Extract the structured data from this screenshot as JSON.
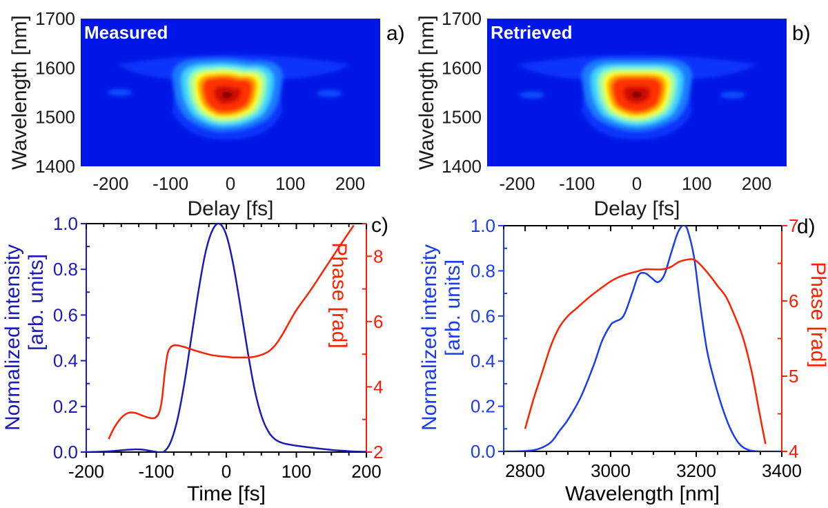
{
  "colors": {
    "map_background": "#0016e6",
    "intensity_c": "#1a1ab8",
    "intensity_d": "#1a3cf0",
    "phase": "#ff2000",
    "axis_text": "#1a1a1a",
    "intensity_axis_text": "#1a1ad6",
    "phase_axis_text": "#ff1a00"
  },
  "chart_data": [
    {
      "id": "a",
      "type": "heatmap",
      "panel_label": "a)",
      "title": "Measured",
      "xlabel": "Delay [fs]",
      "ylabel": "Wavelength [nm]",
      "xlim": [
        -250,
        250
      ],
      "ylim": [
        1400,
        1700
      ],
      "xticks": [
        -200,
        -100,
        0,
        100,
        200
      ],
      "yticks": [
        1400,
        1500,
        1600,
        1700
      ],
      "colormap": "jet",
      "peak": {
        "delay": -5,
        "wavelength": 1545
      },
      "features": {
        "core_delay_halfwidth": 60,
        "core_wavelength_range": [
          1495,
          1595
        ],
        "pedestal_delay_range": [
          -190,
          200
        ],
        "pedestal_wavelength_range": [
          1455,
          1635
        ],
        "side_lobes": [
          {
            "delay": -185,
            "wavelength": 1550
          },
          {
            "delay": 165,
            "wavelength": 1548
          }
        ]
      }
    },
    {
      "id": "b",
      "type": "heatmap",
      "panel_label": "b)",
      "title": "Retrieved",
      "xlabel": "Delay [fs]",
      "ylabel": "Wavelength [nm]",
      "xlim": [
        -250,
        250
      ],
      "ylim": [
        1400,
        1700
      ],
      "xticks": [
        -200,
        -100,
        0,
        100,
        200
      ],
      "yticks": [
        1400,
        1500,
        1600,
        1700
      ],
      "colormap": "jet",
      "peak": {
        "delay": 0,
        "wavelength": 1545
      },
      "features": {
        "core_delay_halfwidth": 60,
        "core_wavelength_range": [
          1495,
          1595
        ],
        "pedestal_delay_range": [
          -200,
          200
        ],
        "pedestal_wavelength_range": [
          1455,
          1635
        ],
        "side_lobes": [
          {
            "delay": -175,
            "wavelength": 1545
          },
          {
            "delay": 160,
            "wavelength": 1545
          }
        ]
      }
    },
    {
      "id": "c",
      "type": "line",
      "panel_label": "c)",
      "xlabel": "Time [fs]",
      "ylabel": "Normalized intensity\n[arb. units]",
      "ylabel_lines": [
        "Normalized intensity",
        "[arb. units]"
      ],
      "y2label": "Phase [rad]",
      "xlim": [
        -200,
        200
      ],
      "ylim": [
        0,
        1.0
      ],
      "y2lim": [
        2,
        9
      ],
      "xticks": [
        -200,
        -100,
        0,
        100,
        200
      ],
      "yticks": [
        "0.0",
        "0.2",
        "0.4",
        "0.6",
        "0.8",
        "1.0"
      ],
      "y2ticks": [
        2,
        4,
        6,
        8
      ],
      "series": [
        {
          "name": "Intensity",
          "axis": "left",
          "x": [
            -200,
            -170,
            -150,
            -130,
            -120,
            -110,
            -100,
            -90,
            -80,
            -70,
            -60,
            -50,
            -40,
            -30,
            -20,
            -10,
            0,
            10,
            20,
            30,
            40,
            50,
            60,
            70,
            80,
            90,
            100,
            120,
            140,
            160,
            180,
            200
          ],
          "y": [
            0.0,
            0.003,
            0.008,
            0.012,
            0.011,
            0.006,
            0.001,
            0.0,
            0.04,
            0.14,
            0.3,
            0.5,
            0.7,
            0.87,
            0.97,
            1.0,
            0.95,
            0.82,
            0.64,
            0.45,
            0.28,
            0.16,
            0.09,
            0.055,
            0.04,
            0.033,
            0.028,
            0.02,
            0.013,
            0.007,
            0.003,
            0.001
          ]
        },
        {
          "name": "Phase",
          "axis": "right",
          "x": [
            -168,
            -160,
            -150,
            -140,
            -130,
            -120,
            -110,
            -102,
            -96,
            -92,
            -88,
            -84,
            -80,
            -75,
            -70,
            -60,
            -50,
            -40,
            -30,
            -20,
            -10,
            0,
            10,
            20,
            30,
            40,
            50,
            60,
            70,
            80,
            90,
            100,
            120,
            140,
            160,
            182
          ],
          "y": [
            2.4,
            2.75,
            3.05,
            3.2,
            3.2,
            3.12,
            3.05,
            3.05,
            3.2,
            3.6,
            4.4,
            5.0,
            5.2,
            5.27,
            5.27,
            5.22,
            5.15,
            5.08,
            5.02,
            4.97,
            4.94,
            4.92,
            4.9,
            4.9,
            4.9,
            4.92,
            4.98,
            5.08,
            5.28,
            5.6,
            5.98,
            6.35,
            6.95,
            7.6,
            8.25,
            8.95
          ]
        }
      ]
    },
    {
      "id": "d",
      "type": "line",
      "panel_label": "d)",
      "xlabel": "Wavelength [nm]",
      "ylabel": "Normalized intensity\n[arb. units]",
      "ylabel_lines": [
        "Normalized intensity",
        "[arb. units]"
      ],
      "y2label": "Phase [rad]",
      "xlim": [
        2750,
        3400
      ],
      "ylim": [
        0,
        1.0
      ],
      "y2lim": [
        4,
        7
      ],
      "xticks": [
        2800,
        3000,
        3200,
        3400
      ],
      "yticks": [
        "0.0",
        "0.2",
        "0.4",
        "0.6",
        "0.8",
        "1.0"
      ],
      "y2ticks": [
        4,
        5,
        6,
        7
      ],
      "series": [
        {
          "name": "Intensity",
          "axis": "left",
          "x": [
            2750,
            2800,
            2830,
            2860,
            2880,
            2900,
            2930,
            2960,
            2980,
            3000,
            3010,
            3030,
            3050,
            3065,
            3080,
            3095,
            3110,
            3125,
            3140,
            3155,
            3165,
            3172,
            3180,
            3195,
            3210,
            3225,
            3240,
            3260,
            3280,
            3300,
            3320,
            3340,
            3360,
            3400
          ],
          "y": [
            0.0,
            0.002,
            0.01,
            0.04,
            0.09,
            0.14,
            0.24,
            0.38,
            0.49,
            0.56,
            0.575,
            0.6,
            0.7,
            0.78,
            0.79,
            0.77,
            0.75,
            0.78,
            0.87,
            0.96,
            0.995,
            1.0,
            0.98,
            0.86,
            0.64,
            0.45,
            0.33,
            0.2,
            0.1,
            0.035,
            0.008,
            0.001,
            0.0,
            0.0
          ]
        },
        {
          "name": "Phase",
          "axis": "right",
          "x": [
            2800,
            2820,
            2840,
            2860,
            2880,
            2900,
            2920,
            2950,
            2980,
            3000,
            3020,
            3040,
            3060,
            3080,
            3100,
            3120,
            3140,
            3160,
            3180,
            3195,
            3210,
            3230,
            3250,
            3270,
            3290,
            3310,
            3330,
            3345,
            3355,
            3362
          ],
          "y": [
            4.3,
            4.7,
            5.05,
            5.4,
            5.65,
            5.8,
            5.9,
            6.05,
            6.18,
            6.26,
            6.32,
            6.36,
            6.39,
            6.42,
            6.42,
            6.42,
            6.45,
            6.52,
            6.55,
            6.55,
            6.48,
            6.35,
            6.2,
            6.05,
            5.8,
            5.5,
            5.05,
            4.6,
            4.3,
            4.1
          ]
        }
      ]
    }
  ]
}
